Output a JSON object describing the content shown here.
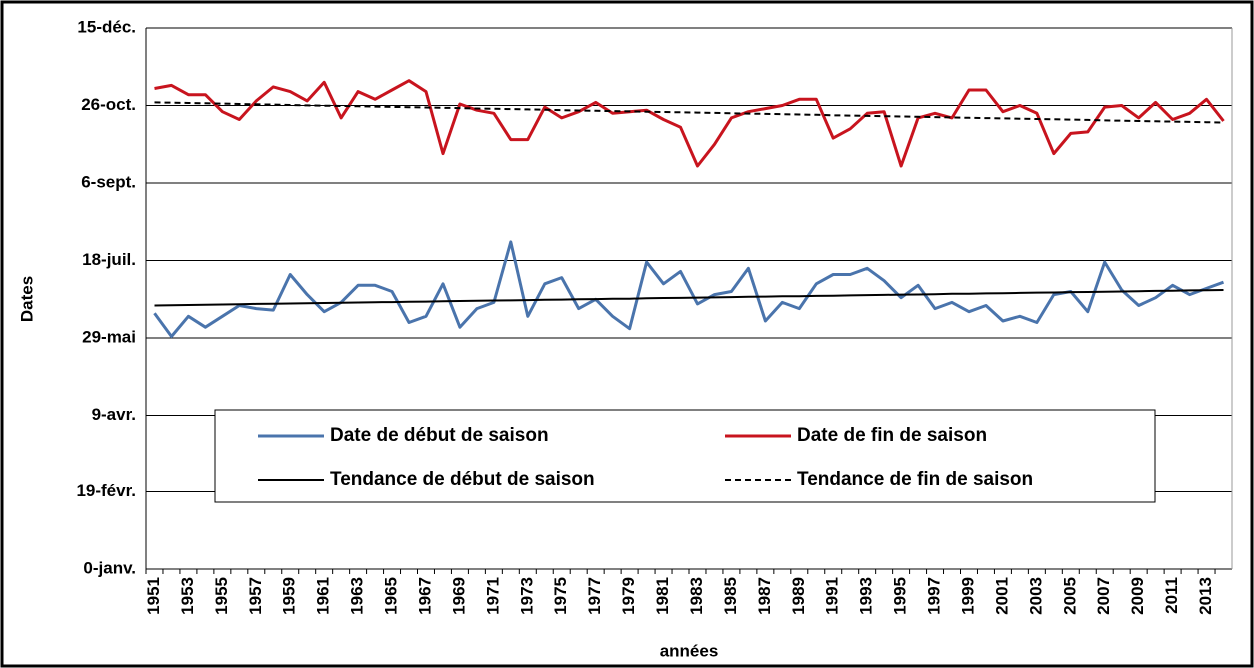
{
  "chart_data": {
    "type": "line",
    "ylabel": "Dates",
    "xlabel": "années",
    "categories": [
      "1951",
      null,
      "1953",
      null,
      "1955",
      null,
      "1957",
      null,
      "1959",
      null,
      "1961",
      null,
      "1963",
      null,
      "1965",
      null,
      "1967",
      null,
      "1969",
      null,
      "1971",
      null,
      "1973",
      null,
      "1975",
      null,
      "1977",
      null,
      "1979",
      null,
      "1981",
      null,
      "1983",
      null,
      "1985",
      null,
      "1987",
      null,
      "1989",
      null,
      "1991",
      null,
      "1993",
      null,
      "1995",
      null,
      "1997",
      null,
      "1999",
      null,
      "2001",
      null,
      "2003",
      null,
      "2005",
      null,
      "2007",
      null,
      "2009",
      null,
      "2011",
      null,
      "2013",
      null
    ],
    "series": [
      {
        "name": "Date de début de saison",
        "color": "#4a74ac",
        "style": "solid",
        "width": 3,
        "values": [
          165,
          150,
          163,
          156,
          163,
          170,
          168,
          167,
          190,
          177,
          166,
          172,
          183,
          183,
          179,
          159,
          163,
          184,
          156,
          168,
          172,
          211,
          163,
          184,
          188,
          168,
          174,
          163,
          155,
          198,
          184,
          192,
          171,
          177,
          179,
          194,
          160,
          172,
          168,
          184,
          190,
          190,
          194,
          186,
          175,
          183,
          168,
          172,
          166,
          170,
          160,
          163,
          159,
          177,
          179,
          166,
          198,
          180,
          170,
          175,
          183,
          177,
          181,
          185
        ]
      },
      {
        "name": "Date de fin de saison",
        "color": "#c8141e",
        "style": "solid",
        "width": 3,
        "values": [
          310,
          312,
          306,
          306,
          295,
          290,
          302,
          311,
          308,
          302,
          314,
          291,
          308,
          303,
          309,
          315,
          308,
          268,
          300,
          296,
          294,
          277,
          277,
          298,
          291,
          295,
          301,
          294,
          295,
          296,
          290,
          285,
          260,
          274,
          291,
          295,
          297,
          299,
          303,
          303,
          278,
          284,
          294,
          295,
          260,
          291,
          294,
          291,
          309,
          309,
          295,
          299,
          294,
          268,
          281,
          282,
          298,
          299,
          291,
          301,
          290,
          294,
          303,
          289
        ]
      },
      {
        "name": "Tendance de début de saison",
        "color": "#000000",
        "style": "solid",
        "width": 2,
        "values": [
          170.0,
          170.2,
          170.3,
          170.5,
          170.6,
          170.8,
          171.0,
          171.1,
          171.3,
          171.4,
          171.6,
          171.7,
          171.9,
          172.1,
          172.2,
          172.4,
          172.5,
          172.7,
          172.9,
          173.0,
          173.2,
          173.3,
          173.5,
          173.7,
          173.8,
          174.0,
          174.1,
          174.3,
          174.4,
          174.6,
          174.8,
          174.9,
          175.1,
          175.2,
          175.4,
          175.6,
          175.7,
          175.9,
          176.0,
          176.2,
          176.3,
          176.5,
          176.7,
          176.8,
          177.0,
          177.1,
          177.3,
          177.5,
          177.6,
          177.8,
          177.9,
          178.1,
          178.3,
          178.4,
          178.6,
          178.7,
          178.9,
          179.0,
          179.2,
          179.4,
          179.5,
          179.7,
          179.8,
          180.0
        ]
      },
      {
        "name": "Tendance de fin de saison",
        "color": "#000000",
        "style": "dashed",
        "width": 2,
        "values": [
          301.0,
          300.8,
          300.6,
          300.4,
          300.2,
          300.0,
          299.8,
          299.6,
          299.3,
          299.1,
          298.9,
          298.7,
          298.5,
          298.3,
          298.1,
          297.9,
          297.7,
          297.5,
          297.3,
          297.1,
          296.9,
          296.7,
          296.5,
          296.3,
          296.0,
          295.8,
          295.6,
          295.4,
          295.2,
          295.0,
          294.8,
          294.6,
          294.4,
          294.2,
          294.0,
          293.8,
          293.6,
          293.4,
          293.2,
          293.0,
          292.7,
          292.5,
          292.3,
          292.1,
          291.9,
          291.7,
          291.5,
          291.3,
          291.1,
          290.9,
          290.7,
          290.5,
          290.3,
          290.1,
          289.9,
          289.7,
          289.4,
          289.2,
          289.0,
          288.8,
          288.6,
          288.4,
          288.2,
          288.0
        ]
      }
    ],
    "ylim": [
      0,
      349
    ],
    "yticks": [
      {
        "value": 0,
        "label": "0-janv."
      },
      {
        "value": 50,
        "label": "19-févr."
      },
      {
        "value": 99,
        "label": "9-avr."
      },
      {
        "value": 149,
        "label": "29-mai"
      },
      {
        "value": 199,
        "label": "18-juil."
      },
      {
        "value": 249,
        "label": "6-sept."
      },
      {
        "value": 299,
        "label": "26-oct."
      },
      {
        "value": 349,
        "label": "15-déc."
      }
    ],
    "grid": true,
    "legend": "bottom"
  }
}
